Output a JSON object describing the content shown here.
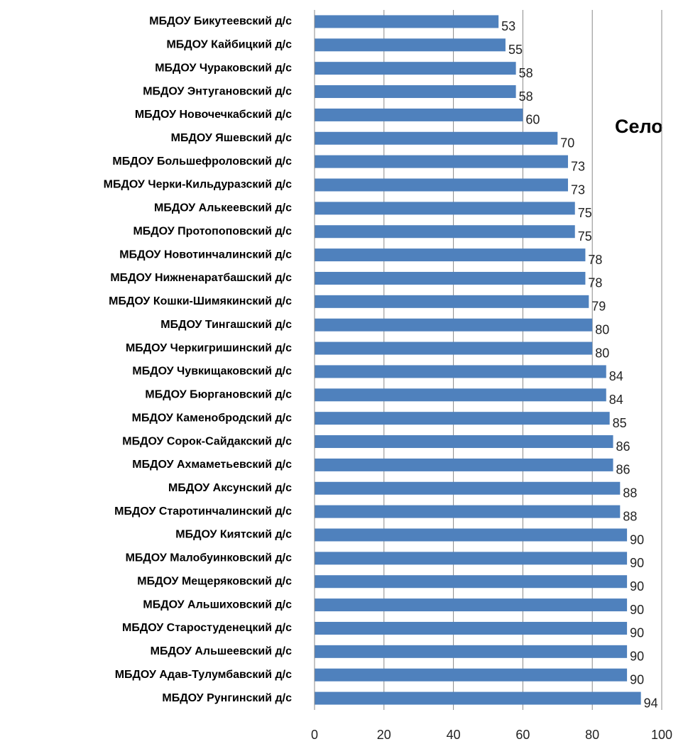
{
  "chart_data": {
    "type": "bar",
    "orientation": "horizontal",
    "title": "Село",
    "categories": [
      "МБДОУ  Бикутеевский д/с",
      "МБДОУ  Кайбицкий д/с",
      "МБДОУ  Чураковский д/с",
      "МБДОУ  Энтугановский д/с",
      "МБДОУ  Новочечкабский д/с",
      "МБДОУ  Яшевский д/с",
      "МБДОУ  Большефроловский д/с",
      "МБДОУ  Черки-Кильдуразский д/с",
      "МБДОУ  Алькеевский д/с",
      "МБДОУ  Протопоповский д/с",
      "МБДОУ  Новотинчалинский д/с",
      "МБДОУ  Нижненаратбашский д/с",
      "МБДОУ  Кошки-Шимякинский д/с",
      "МБДОУ  Тингашский д/с",
      "МБДОУ  Черкигришинский д/с",
      "МБДОУ  Чувкищаковский д/с",
      "МБДОУ  Бюргановский д/с",
      "МБДОУ  Каменобродский д/с",
      "МБДОУ  Сорок-Сайдакский д/с",
      "МБДОУ  Ахмаметьевский д/с",
      "МБДОУ  Аксунский д/с",
      "МБДОУ  Старотинчалинский д/с",
      "МБДОУ  Киятский д/с",
      "МБДОУ  Малобуинковский д/с",
      "МБДОУ  Мещеряковский д/с",
      "МБДОУ  Альшиховский д/с",
      "МБДОУ  Старостуденецкий д/с",
      "МБДОУ  Альшеевский д/с",
      "МБДОУ  Адав-Тулумбавский д/с",
      "МБДОУ  Рунгинский д/с"
    ],
    "values": [
      53,
      55,
      58,
      58,
      60,
      70,
      73,
      73,
      75,
      75,
      78,
      78,
      79,
      80,
      80,
      84,
      84,
      85,
      86,
      86,
      88,
      88,
      90,
      90,
      90,
      90,
      90,
      90,
      90,
      94
    ],
    "color": "#4f81bd",
    "xlim": [
      0,
      100
    ],
    "xticks": [
      0,
      20,
      40,
      60,
      80,
      100
    ],
    "grid": true
  }
}
